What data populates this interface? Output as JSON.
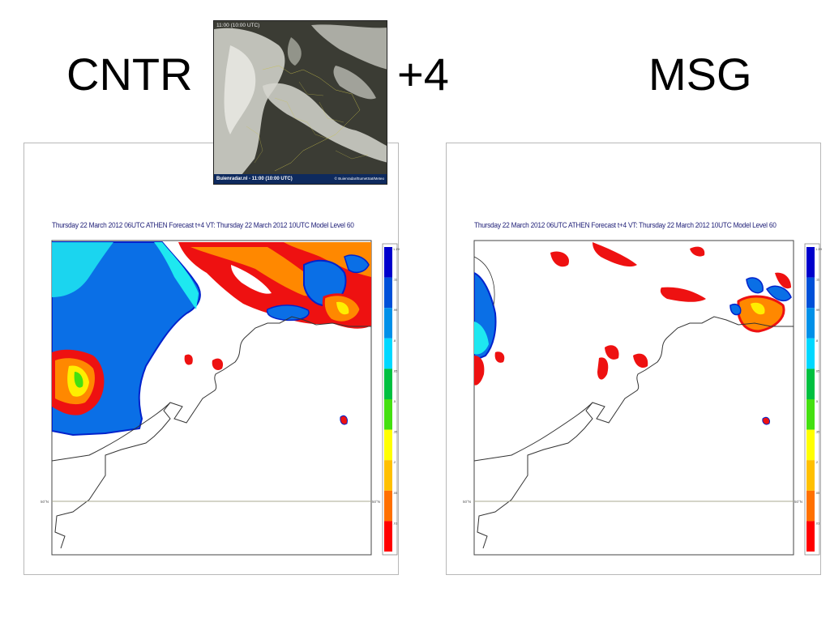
{
  "slide": {
    "title_left": "CNTR",
    "title_middle": "+4",
    "title_right": "MSG"
  },
  "satellite_image": {
    "header": "11:00 (10:00 UTC)",
    "footer_left": "Buienradar.nl - 11:00 (10:00 UTC)",
    "footer_right": "© Buienradar/EumetSat/Meteo"
  },
  "panels": [
    {
      "id": "cntr",
      "caption": "Thursday 22 March 2012 06UTC ATHEN  Forecast t+4 VT: Thursday 22 March 2012 10UTC Model Level 60",
      "lat_label": "50°N"
    },
    {
      "id": "msg",
      "caption": "Thursday 22 March 2012 06UTC ATHEN  Forecast t+4 VT: Thursday 22 March 2012 10UTC Model Level 60",
      "lat_label": "50°N"
    }
  ],
  "colorbar": {
    "labels": [
      "1.1%",
      ".11",
      ".99",
      ".8",
      ".65",
      ".5",
      ".35",
      ".2",
      ".05",
      ".01"
    ],
    "colors": [
      "#0000cc",
      "#0050d8",
      "#0090e8",
      "#00d8ff",
      "#00c040",
      "#44e010",
      "#ffff00",
      "#ffc000",
      "#ff7000",
      "#ff0000"
    ]
  },
  "colors": {
    "cloud_blue": "#0a6fe6",
    "cloud_edge": "#0022cc",
    "cyan": "#1ee8f0",
    "orange": "#ff8800",
    "red": "#ee1111",
    "yellow": "#ffee00",
    "coast": "#333333",
    "lat_line": "#a8a890"
  }
}
